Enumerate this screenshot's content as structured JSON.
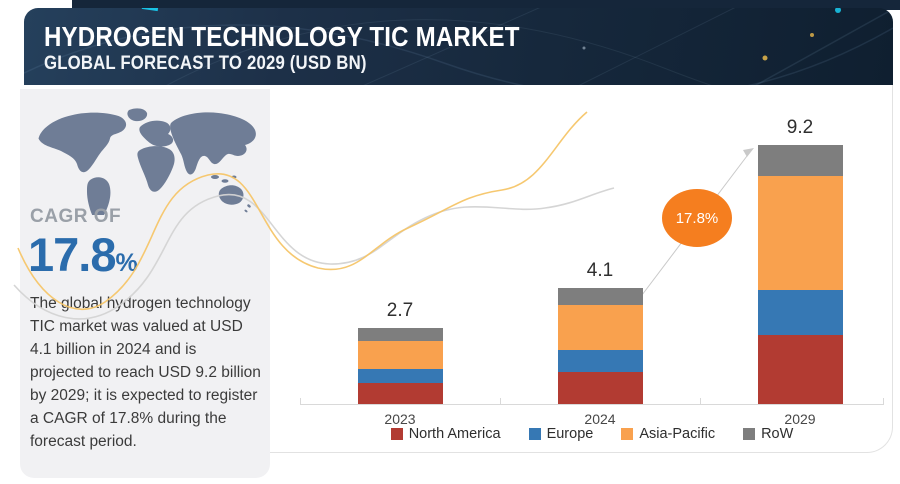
{
  "header": {
    "title": "HYDROGEN TECHNOLOGY TIC MARKET",
    "subtitle": "GLOBAL FORECAST TO 2029 (USD BN)"
  },
  "left_panel": {
    "cagr_label": "CAGR OF",
    "cagr_value": "17.8",
    "cagr_percent_sign": "%",
    "description": "The global hydrogen technology TIC market was valued at USD 4.1 billion in 2024 and is projected to reach USD 9.2 billion by 2029; it is expected to register a CAGR of 17.8% during the forecast period."
  },
  "chart_data": {
    "type": "bar",
    "stacked": true,
    "title": "Hydrogen Technology TIC Market, Global Forecast to 2029 (USD BN)",
    "categories": [
      "2023",
      "2024",
      "2029"
    ],
    "series": [
      {
        "name": "North America",
        "color": "#B23B32",
        "values": [
          0.75,
          1.15,
          2.45
        ]
      },
      {
        "name": "Europe",
        "color": "#3678B4",
        "values": [
          0.5,
          0.75,
          1.6
        ]
      },
      {
        "name": "Asia-Pacific",
        "color": "#F9A14E",
        "values": [
          1.0,
          1.6,
          4.05
        ]
      },
      {
        "name": "RoW",
        "color": "#7E7E7E",
        "values": [
          0.45,
          0.6,
          1.1
        ]
      }
    ],
    "totals": [
      "2.7",
      "4.1",
      "9.2"
    ],
    "xlabel": "",
    "ylabel": "USD BN",
    "grid": false,
    "legend_position": "bottom",
    "annotation": {
      "cagr_badge": "17.8%",
      "badge_color": "#F57E1F"
    }
  },
  "colors": {
    "header_navy": "#16283c",
    "panel_gray": "#f1f1f3",
    "map_fill": "#6f7d96",
    "cagr_blue": "#2b6cac",
    "wave_yellow": "#f5c568",
    "wave_gray": "#d3d3d3",
    "axis_gray": "#d9d9d9"
  }
}
